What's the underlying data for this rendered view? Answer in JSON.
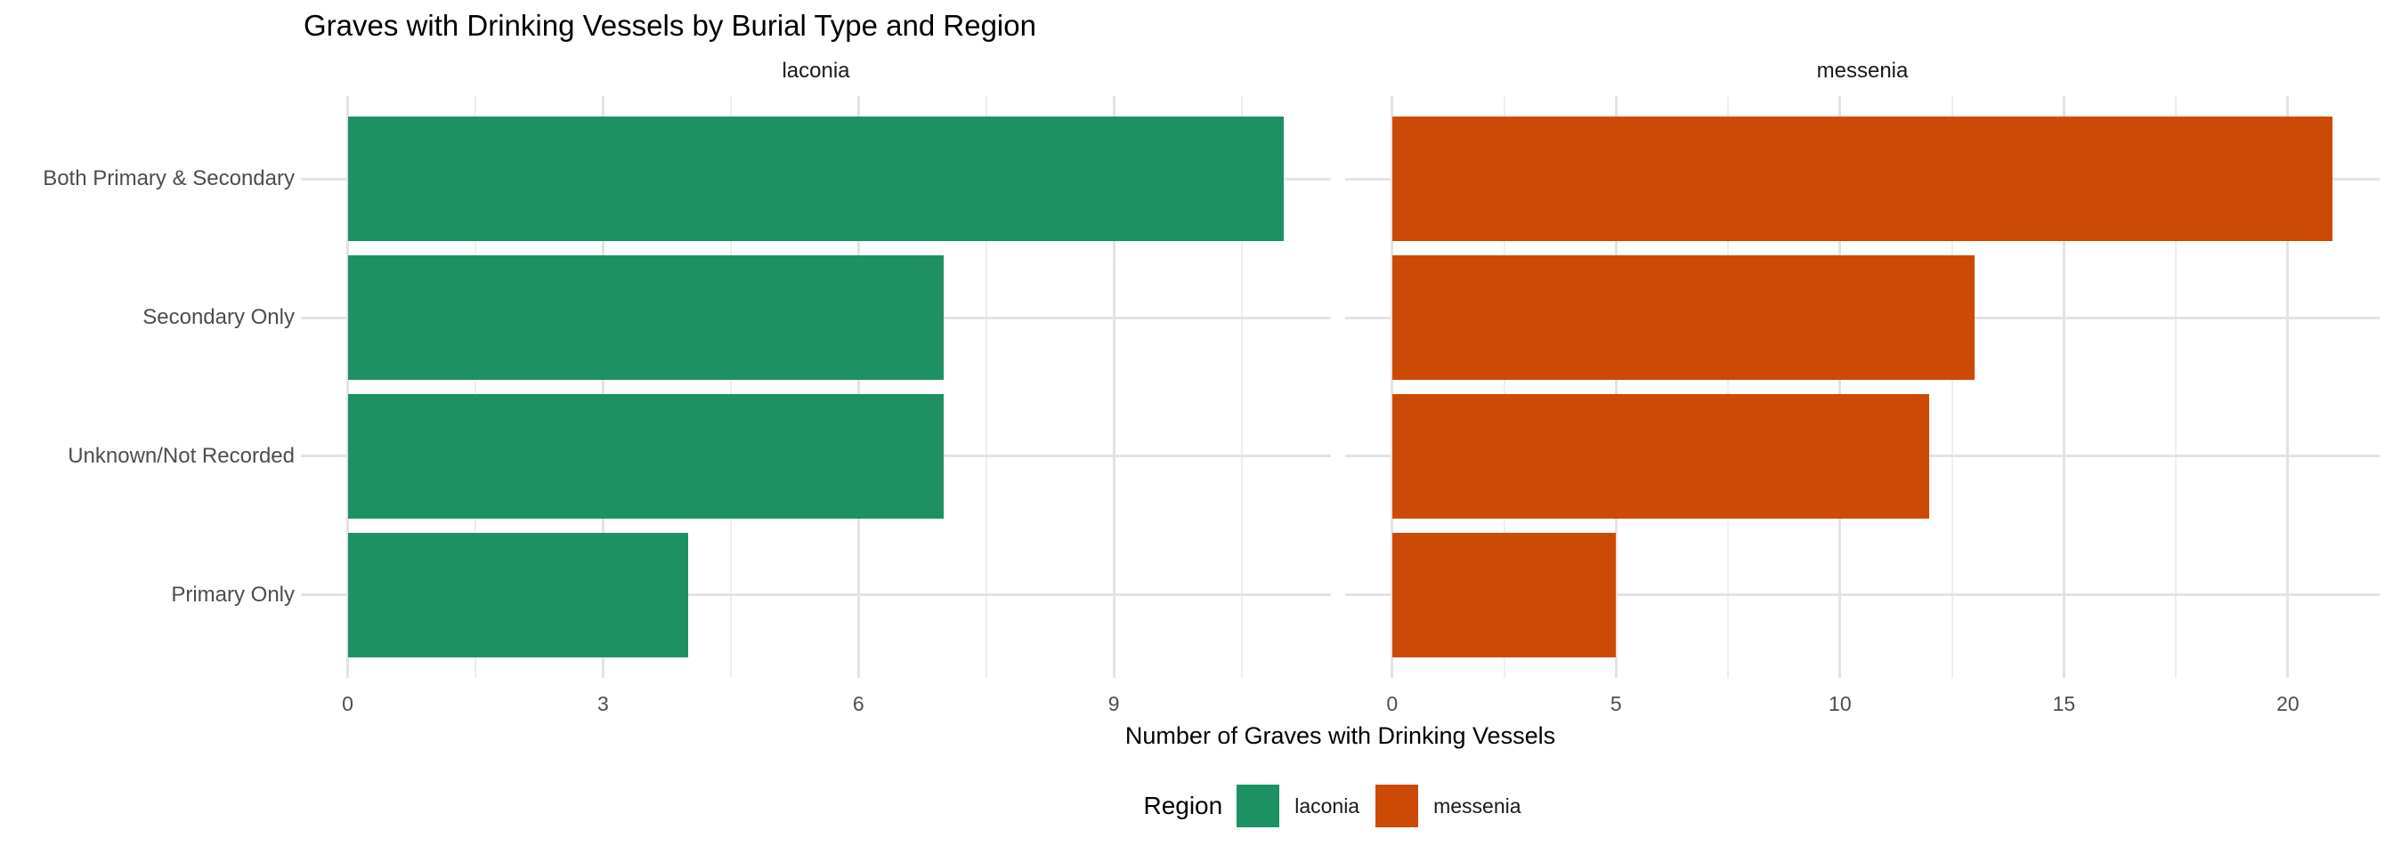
{
  "chart_data": {
    "type": "bar",
    "orientation": "horizontal",
    "title": "Graves with Drinking Vessels by Burial Type and Region",
    "xlabel": "Number of Graves with Drinking Vessels",
    "ylabel": "",
    "grid": "on",
    "legend_position": "bottom",
    "categories": [
      "Both Primary & Secondary",
      "Secondary Only",
      "Unknown/Not Recorded",
      "Primary Only"
    ],
    "facets": [
      {
        "name": "laconia",
        "color": "#1e9164",
        "values": [
          11,
          7,
          7,
          4
        ],
        "x_major_ticks": [
          0,
          3,
          6,
          9
        ],
        "x_minor_ticks": [
          1.5,
          4.5,
          7.5,
          10.5
        ],
        "xlim": [
          -0.55,
          11.55
        ]
      },
      {
        "name": "messenia",
        "color": "#cc4a05",
        "values": [
          21,
          13,
          12,
          5
        ],
        "x_major_ticks": [
          0,
          5,
          10,
          15,
          20
        ],
        "x_minor_ticks": [
          2.5,
          7.5,
          12.5,
          17.5
        ],
        "xlim": [
          -1.05,
          22.05
        ]
      }
    ],
    "legend": {
      "title": "Region",
      "entries": [
        {
          "label": "laconia",
          "color": "#1e9164"
        },
        {
          "label": "messenia",
          "color": "#cc4a05"
        }
      ]
    },
    "colors": {
      "grid_major": "#e3e3e3",
      "grid_minor": "#eeeeee",
      "axis_text": "#4d4d4d",
      "strip_text": "#1a1a1a",
      "title_text": "#000000"
    }
  }
}
